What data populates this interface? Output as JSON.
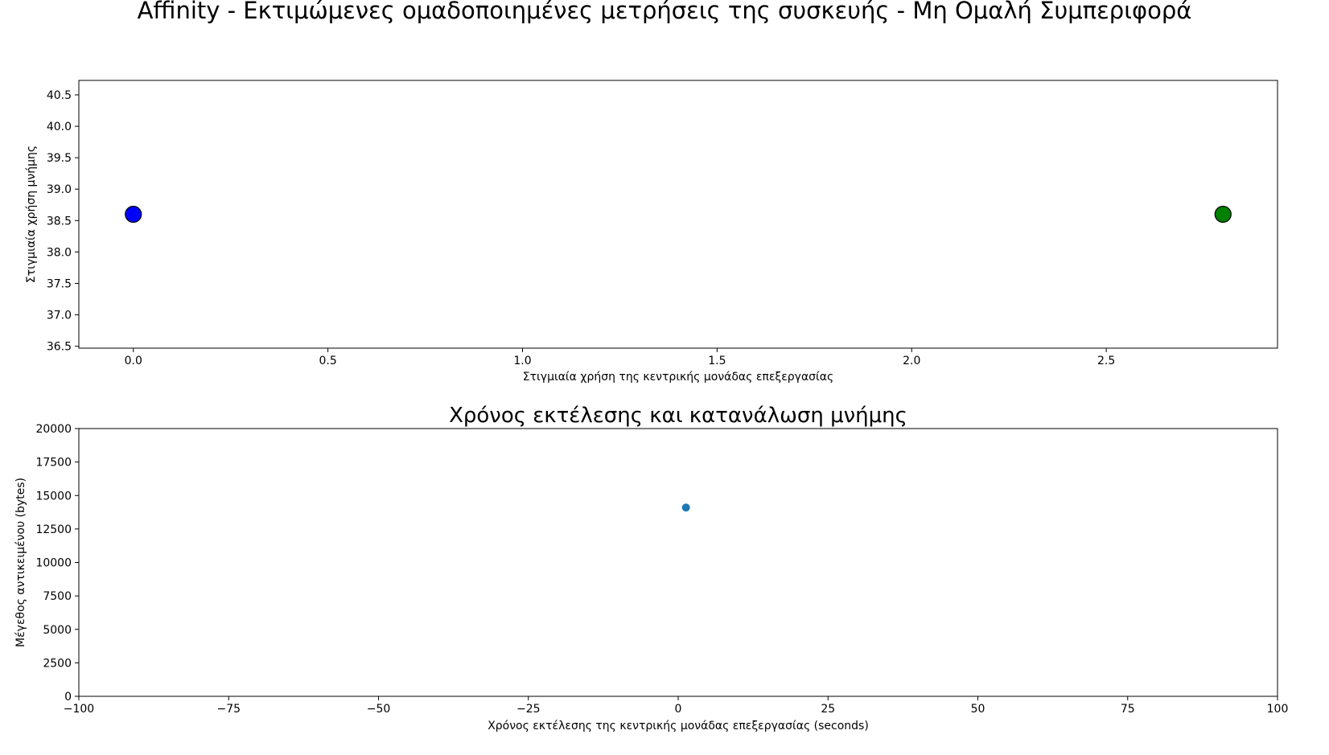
{
  "figure": {
    "suptitle": "Affinity - Εκτιμώμενες ομαδοποιημένες μετρήσεις της συσκευής - Μη Ομαλή Συμπεριφορά"
  },
  "chart_data": [
    {
      "type": "scatter",
      "title": "",
      "xlabel": "Στιγμιαία χρήση της κεντρικής μονάδας επεξεργασίας",
      "ylabel": "Στιγμιαία χρήση μνήμης",
      "xlim": [
        -0.14,
        2.94
      ],
      "ylim": [
        36.47,
        40.73
      ],
      "xticks": [
        0.0,
        0.5,
        1.0,
        1.5,
        2.0,
        2.5
      ],
      "xtick_labels": [
        "0.0",
        "0.5",
        "1.0",
        "1.5",
        "2.0",
        "2.5"
      ],
      "yticks": [
        36.5,
        37.0,
        37.5,
        38.0,
        38.5,
        39.0,
        39.5,
        40.0,
        40.5
      ],
      "ytick_labels": [
        "36.5",
        "37.0",
        "37.5",
        "38.0",
        "38.5",
        "39.0",
        "39.5",
        "40.0",
        "40.5"
      ],
      "grid": false,
      "points": [
        {
          "x": 0.0,
          "y": 38.6,
          "color": "#0000ff"
        },
        {
          "x": 2.8,
          "y": 38.6,
          "color": "#008000"
        }
      ]
    },
    {
      "type": "scatter",
      "title": "Χρόνος εκτέλεσης και κατανάλωση μνήμης",
      "xlabel": "Χρόνος εκτέλεσης της κεντρικής μονάδας επεξεργασίας (seconds)",
      "ylabel": "Μέγεθος αντικειμένου (bytes)",
      "xlim": [
        -100,
        100
      ],
      "ylim": [
        0,
        20000
      ],
      "xticks": [
        -100,
        -75,
        -50,
        -25,
        0,
        25,
        50,
        75,
        100
      ],
      "xtick_labels": [
        "−100",
        "−75",
        "−50",
        "−25",
        "0",
        "25",
        "50",
        "75",
        "100"
      ],
      "yticks": [
        0,
        2500,
        5000,
        7500,
        10000,
        12500,
        15000,
        17500,
        20000
      ],
      "ytick_labels": [
        "0",
        "2500",
        "5000",
        "7500",
        "10000",
        "12500",
        "15000",
        "17500",
        "20000"
      ],
      "grid": false,
      "points": [
        {
          "x": 1.3,
          "y": 14100,
          "color": "#1f77b4"
        }
      ]
    }
  ]
}
